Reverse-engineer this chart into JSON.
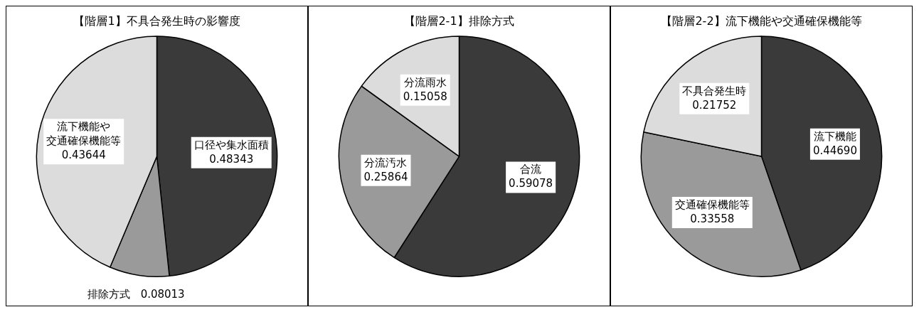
{
  "chart_data": [
    {
      "type": "pie",
      "title": "【階層1】不具合発生時の影響度",
      "categories": [
        "口径や集水面積",
        "排除方式",
        "流下機能や交通確保機能等"
      ],
      "values": [
        0.48343,
        0.08013,
        0.43644
      ],
      "value_labels": [
        "0.48343",
        "0.08013",
        "0.43644"
      ],
      "colors": [
        "#3a3a3a",
        "#9a9a9a",
        "#dcdcdc"
      ]
    },
    {
      "type": "pie",
      "title": "【階層2-1】排除方式",
      "categories": [
        "合流",
        "分流汚水",
        "分流雨水"
      ],
      "values": [
        0.59078,
        0.25864,
        0.15058
      ],
      "value_labels": [
        "0.59078",
        "0.25864",
        "0.15058"
      ],
      "colors": [
        "#3a3a3a",
        "#9a9a9a",
        "#dcdcdc"
      ]
    },
    {
      "type": "pie",
      "title": "【階層2-2】流下機能や交通確保機能等",
      "categories": [
        "流下機能",
        "交通確保機能等",
        "不具合発生時"
      ],
      "values": [
        0.4469,
        0.33558,
        0.21752
      ],
      "value_labels": [
        "0.44690",
        "0.33558",
        "0.21752"
      ],
      "colors": [
        "#3a3a3a",
        "#9a9a9a",
        "#dcdcdc"
      ]
    }
  ]
}
